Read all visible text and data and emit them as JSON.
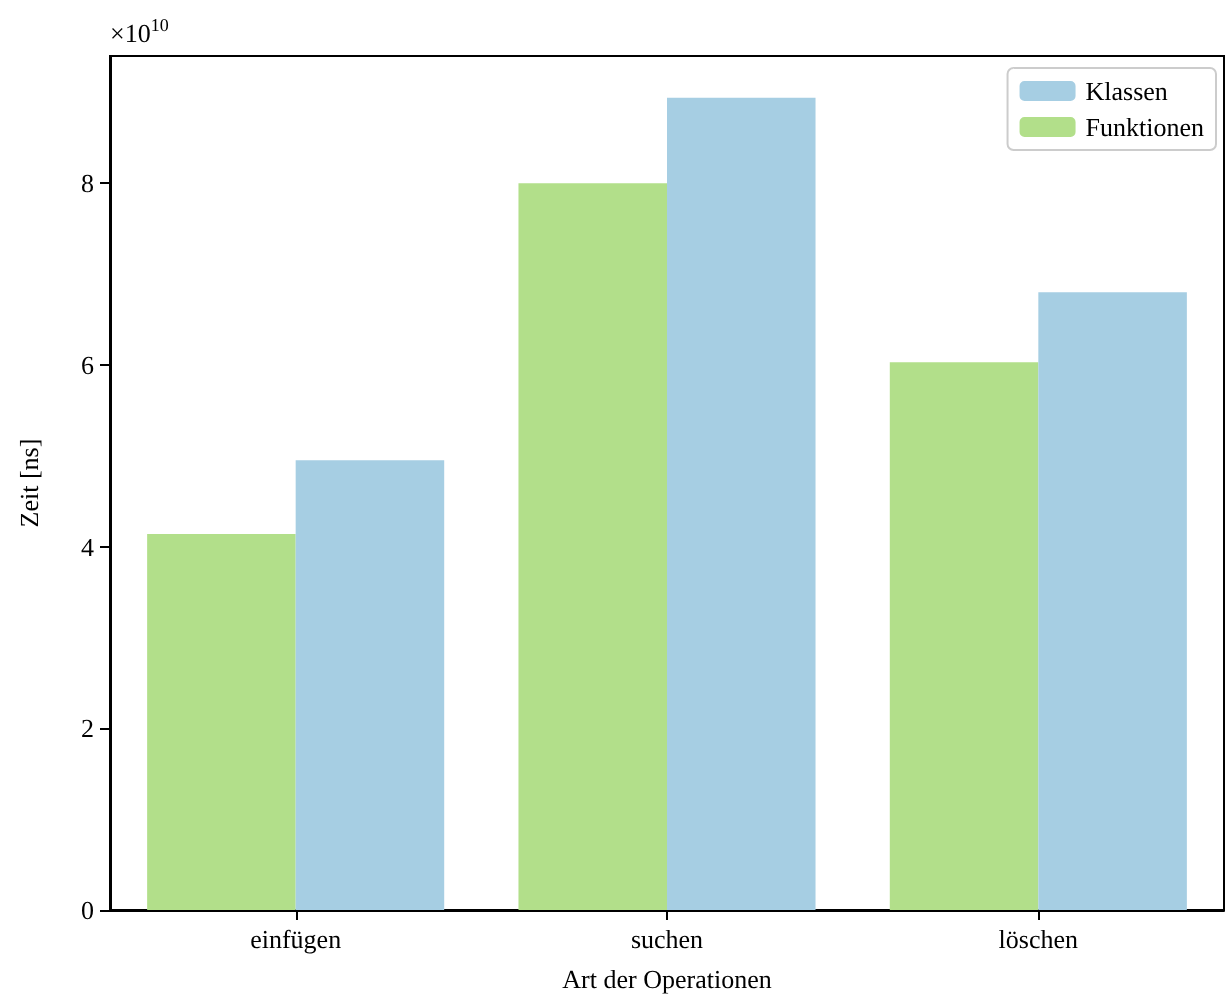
{
  "chart_data": {
    "type": "bar",
    "xlabel": "Art der Operationen",
    "ylabel": "Zeit [ns]",
    "categories": [
      "einfügen",
      "suchen",
      "löschen"
    ],
    "series": [
      {
        "name": "Funktionen",
        "color": "#b2df8a",
        "values": [
          4.14,
          8.0,
          6.03
        ]
      },
      {
        "name": "Klassen",
        "color": "#a6cee3",
        "values": [
          4.95,
          8.94,
          6.8
        ]
      }
    ],
    "ylim": [
      0,
      9.4
    ],
    "yticks": [
      0,
      2,
      4,
      6,
      8
    ],
    "grid": false,
    "legend": "top right",
    "annotations": [
      "×10$^{10}$"
    ]
  }
}
